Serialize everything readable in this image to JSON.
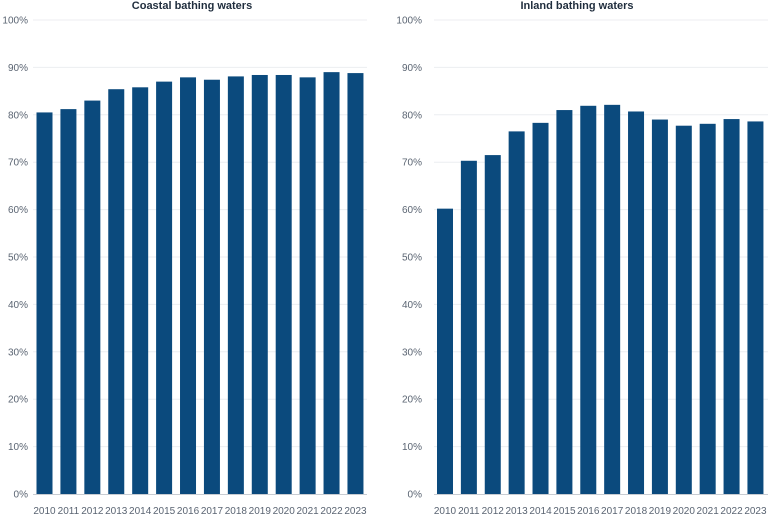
{
  "chart_data": [
    {
      "type": "bar",
      "title": "Coastal bathing waters",
      "categories": [
        "2010",
        "2011",
        "2012",
        "2013",
        "2014",
        "2015",
        "2016",
        "2017",
        "2018",
        "2019",
        "2020",
        "2021",
        "2022",
        "2023"
      ],
      "values": [
        80.5,
        81.2,
        83.0,
        85.4,
        85.8,
        87.0,
        87.9,
        87.4,
        88.1,
        88.4,
        88.4,
        87.9,
        89.0,
        88.8
      ],
      "ylim": [
        0,
        100
      ],
      "yticks": [
        "0%",
        "10%",
        "20%",
        "30%",
        "40%",
        "50%",
        "60%",
        "70%",
        "80%",
        "90%",
        "100%"
      ],
      "grid": true,
      "color": "#0b4a7d"
    },
    {
      "type": "bar",
      "title": "Inland bathing waters",
      "categories": [
        "2010",
        "2011",
        "2012",
        "2013",
        "2014",
        "2015",
        "2016",
        "2017",
        "2018",
        "2019",
        "2020",
        "2021",
        "2022",
        "2023"
      ],
      "values": [
        60.2,
        70.3,
        71.5,
        76.5,
        78.3,
        81.0,
        81.9,
        82.1,
        80.7,
        79.0,
        77.7,
        78.1,
        79.1,
        78.6
      ],
      "ylim": [
        0,
        100
      ],
      "yticks": [
        "0%",
        "10%",
        "20%",
        "30%",
        "40%",
        "50%",
        "60%",
        "70%",
        "80%",
        "90%",
        "100%"
      ],
      "grid": true,
      "color": "#0b4a7d"
    }
  ]
}
